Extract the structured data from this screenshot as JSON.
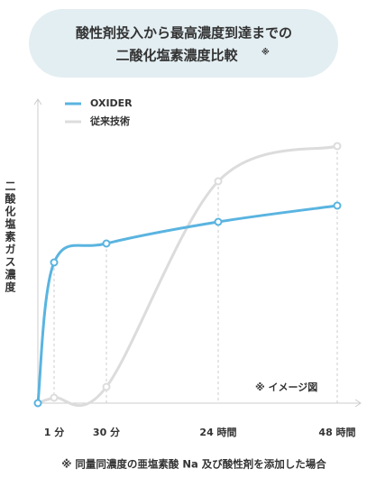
{
  "chart_data": {
    "type": "line",
    "title": [
      "酸性剤投入から最高濃度到達までの",
      "二酸化塩素濃度比較"
    ],
    "title_mark": "※",
    "y_label": "二酸化塩素ガス濃度",
    "categories": [
      null,
      "1 分",
      "30 分",
      "24 時間",
      "48 時間"
    ],
    "series": [
      {
        "name": "OXIDER",
        "color": "#5ab4e0",
        "values": [
          0,
          52,
          59,
          67,
          73
        ]
      },
      {
        "name": "従来技術",
        "color": "#dcdcdc",
        "values": [
          0,
          2,
          6,
          82,
          95
        ]
      }
    ],
    "ylim": [
      0,
      100
    ],
    "annotation": "※ イメージ図",
    "footnote": "※ 同量同濃度の亜塩素酸 Na 及び酸性剤を添加した場合"
  }
}
